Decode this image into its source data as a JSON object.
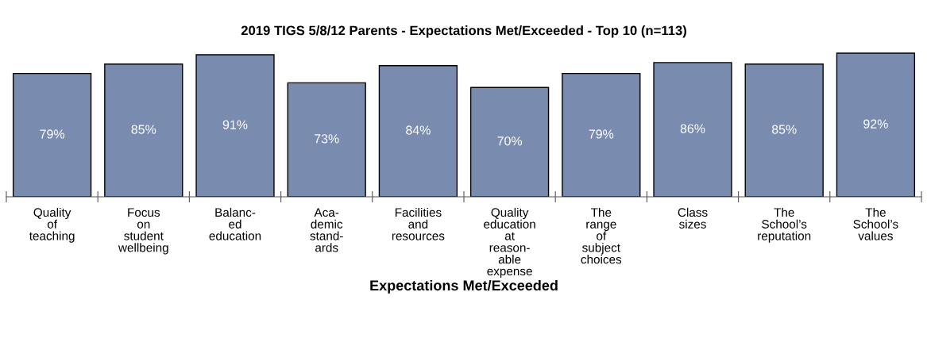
{
  "chart_data": {
    "type": "bar",
    "title": "2019 TIGS 5/8/12 Parents - Expectations Met/Exceeded - Top 10 (n=113)",
    "xlabel": "Expectations Met/Exceeded",
    "categories": [
      "Quality\nof\nteaching",
      "Focus\non\nstudent\nwellbeing",
      "Balanc-\ned\neducation",
      "Aca-\ndemic\nstand-\nards",
      "Facilities\nand\nresources",
      "Quality\neducation\nat\nreason-\nable\nexpense",
      "The\nrange\nof\nsubject\nchoices",
      "Class\nsizes",
      "The\nSchool’s\nreputation",
      "The\nSchool’s\nvalues"
    ],
    "values": [
      79,
      85,
      91,
      73,
      84,
      70,
      79,
      86,
      85,
      92
    ],
    "value_labels": [
      "79%",
      "85%",
      "91%",
      "73%",
      "84%",
      "70%",
      "79%",
      "86%",
      "85%",
      "92%"
    ],
    "color": "#7a8bb0"
  }
}
